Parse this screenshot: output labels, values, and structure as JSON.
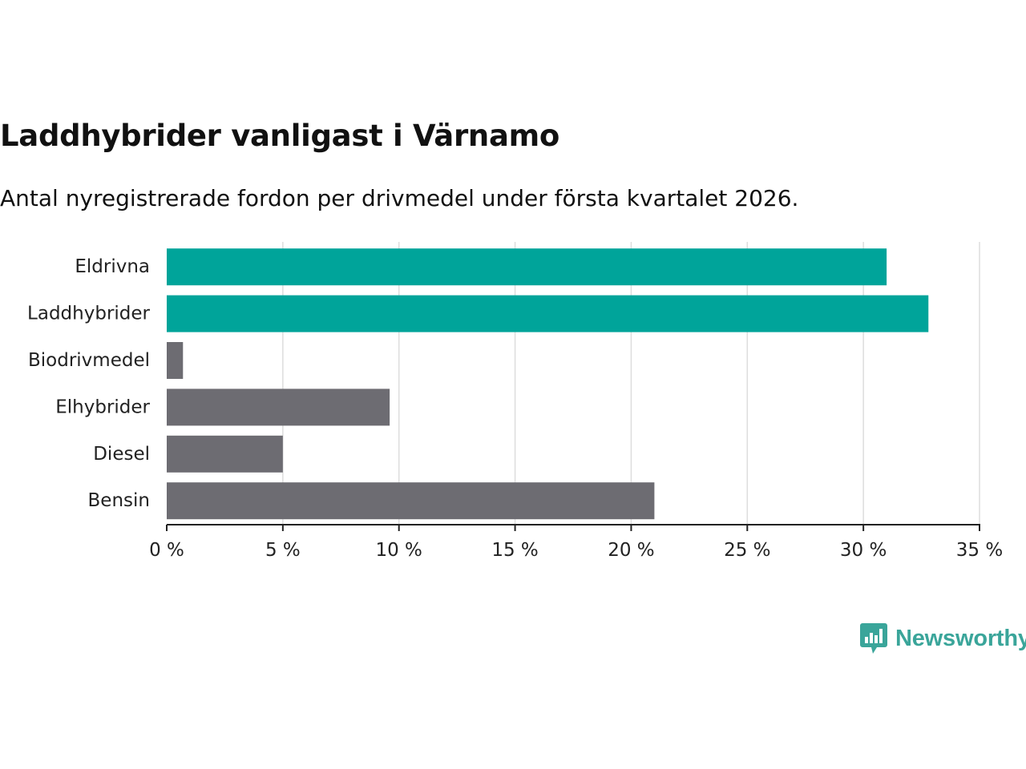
{
  "chart_data": {
    "type": "bar",
    "orientation": "horizontal",
    "title": "Laddhybrider vanligast i Värnamo",
    "subtitle": "Antal nyregistrerade fordon per drivmedel under första kvartalet 2026.",
    "categories": [
      "Eldrivna",
      "Laddhybrider",
      "Biodrivmedel",
      "Elhybrider",
      "Diesel",
      "Bensin"
    ],
    "values": [
      31.0,
      32.8,
      0.7,
      9.6,
      5.0,
      21.0
    ],
    "highlighted": [
      true,
      true,
      false,
      false,
      false,
      false
    ],
    "xlim": [
      0,
      35
    ],
    "xticks": [
      0,
      5,
      10,
      15,
      20,
      25,
      30,
      35
    ],
    "xtick_labels": [
      "0 %",
      "5 %",
      "10 %",
      "15 %",
      "20 %",
      "25 %",
      "30 %",
      "35 %"
    ],
    "xlabel": "",
    "ylabel": "",
    "grid": true
  },
  "colors": {
    "highlight": "#00a49a",
    "default": "#6d6c72",
    "grid": "#dddddd",
    "axis": "#222222",
    "text": "#222222"
  },
  "brand": {
    "name": "Newsworthy",
    "color": "#3aa59a",
    "icon": "bar-chart-speech-bubble-icon"
  }
}
